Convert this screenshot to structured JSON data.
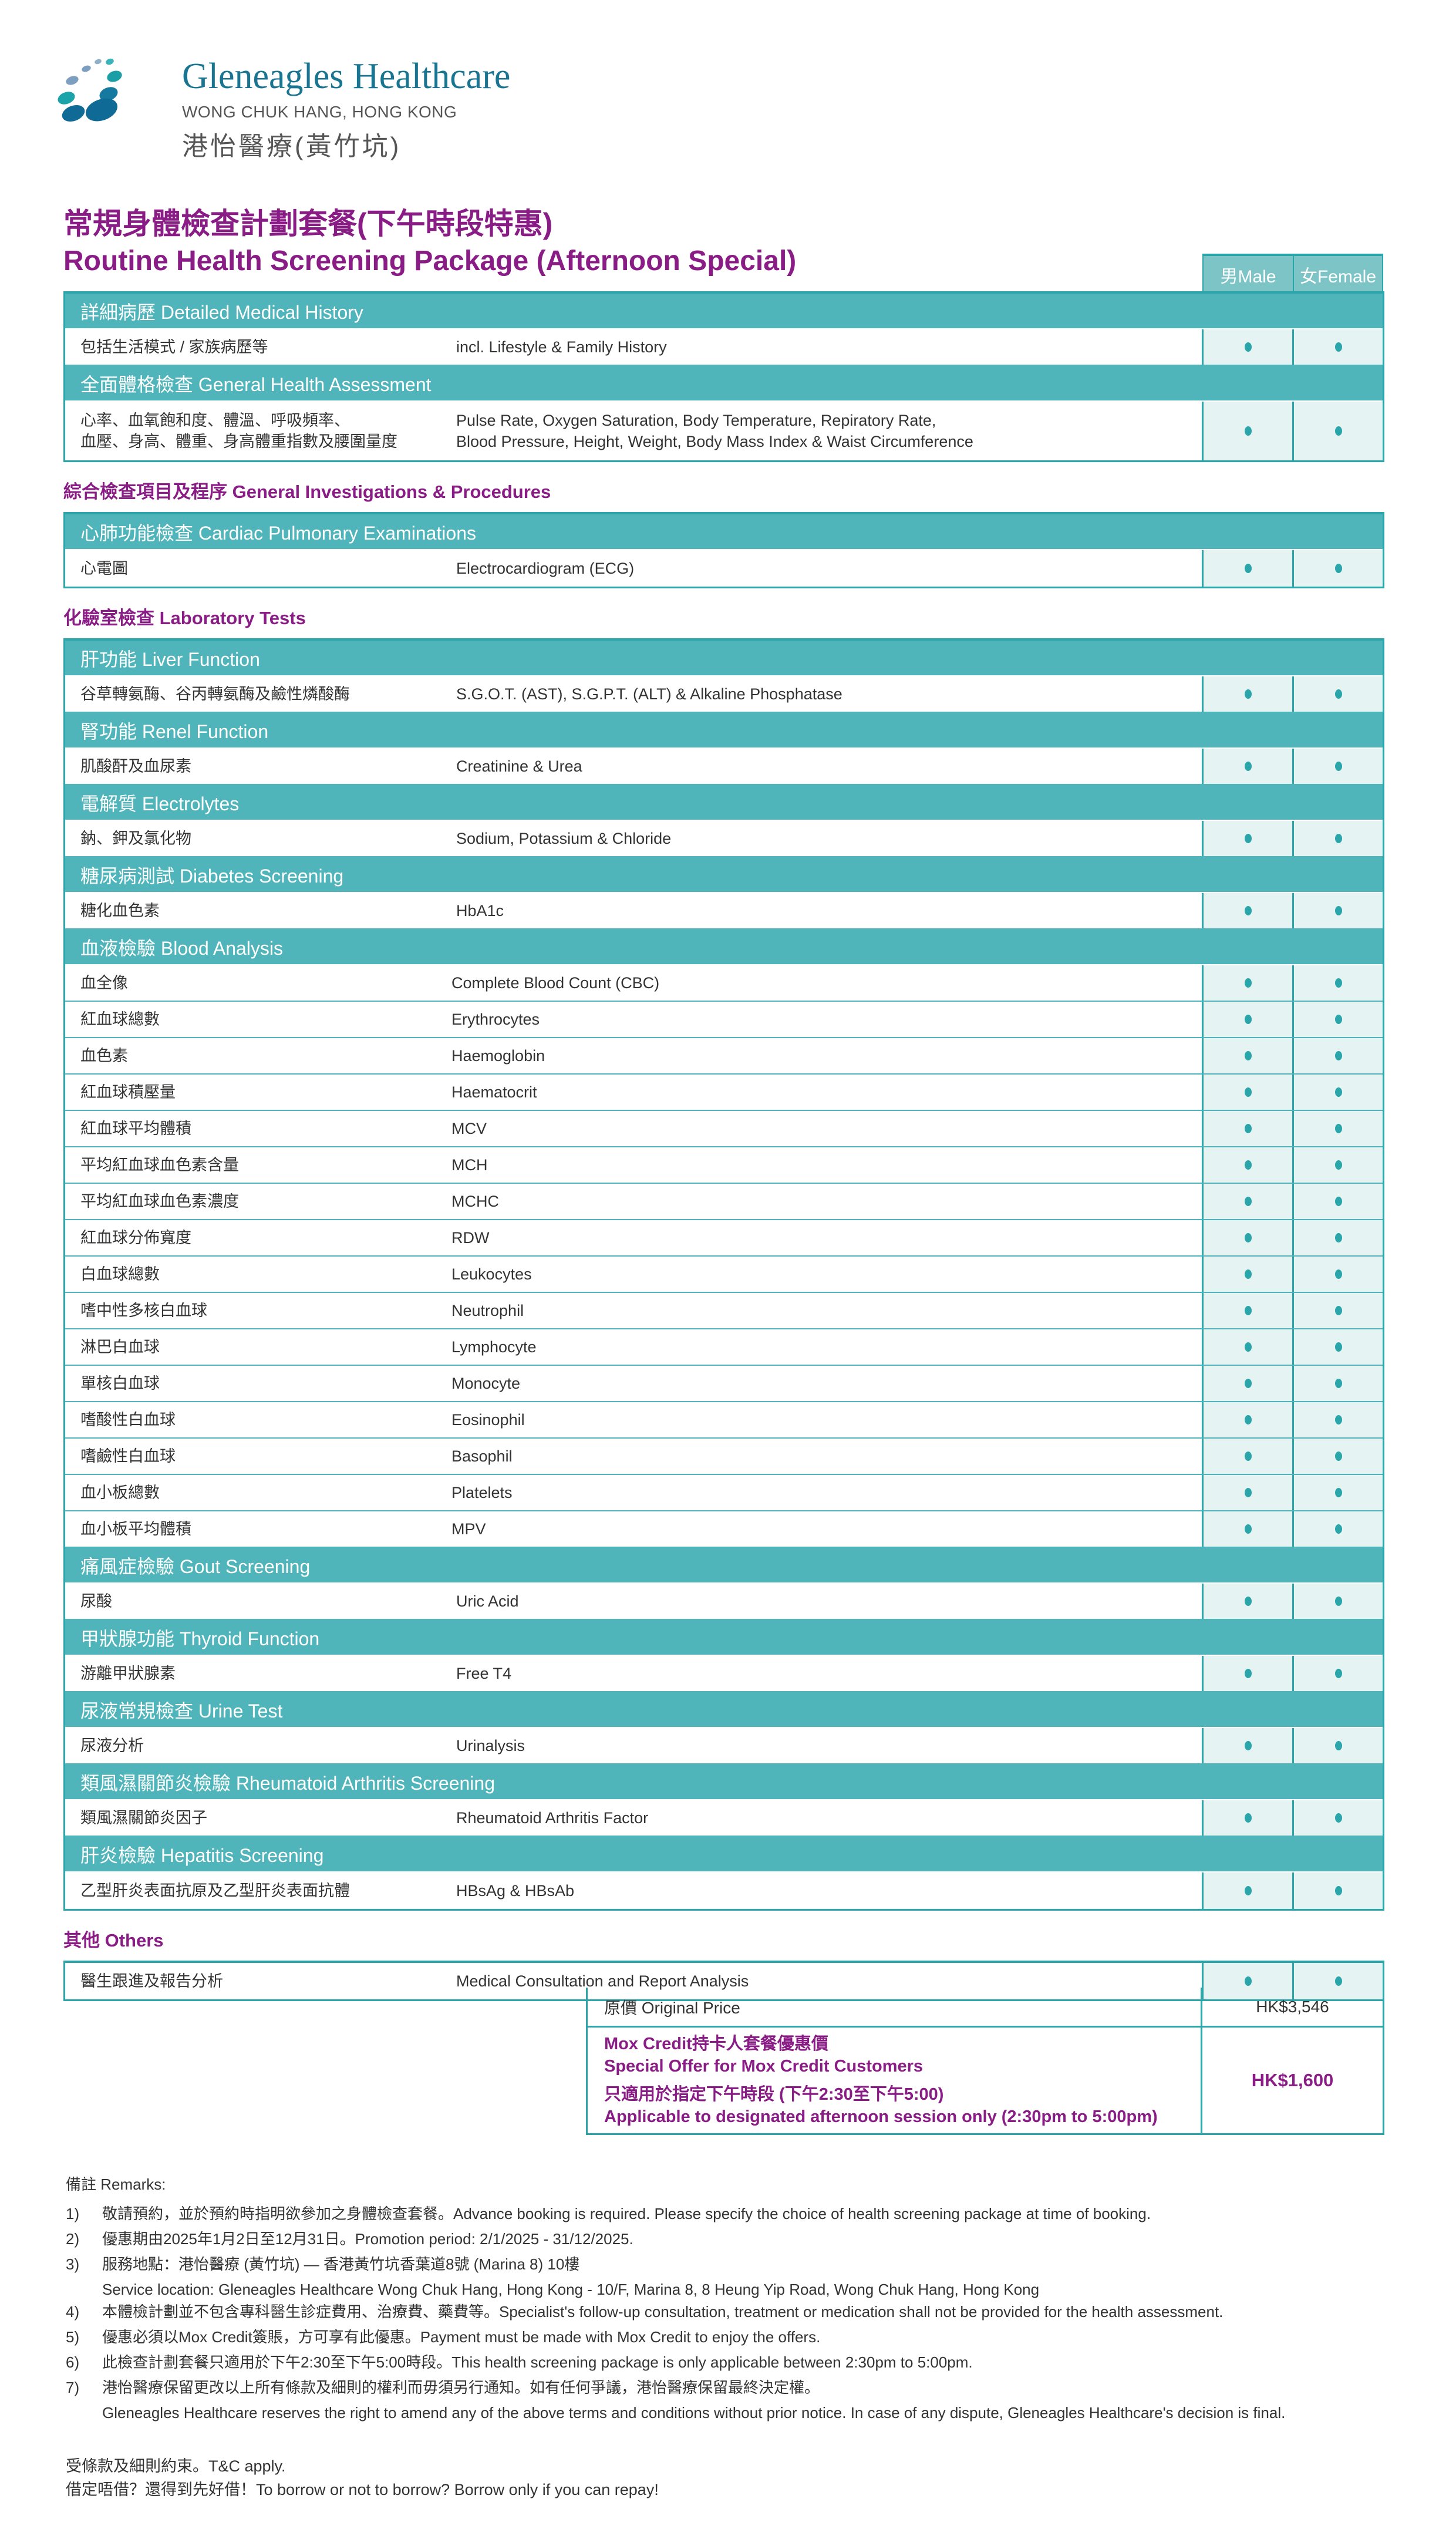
{
  "brand": {
    "name": "Gleneagles Healthcare",
    "location": "WONG CHUK HANG, HONG KONG",
    "name_zh": "港怡醫療(黃竹坑)"
  },
  "title": {
    "zh": "常規身體檢查計劃套餐(下午時段特惠)",
    "en": "Routine Health Screening Package (Afternoon Special)"
  },
  "columns": {
    "male": "男Male",
    "female": "女Female"
  },
  "colors": {
    "teal_header": "#4fb5bb",
    "teal_border": "#2aa5aa",
    "purple": "#8a1c86",
    "cell_bg": "#e6f3f3"
  },
  "blocks": [
    {
      "heading": "",
      "groups": [
        {
          "title": "詳細病歷 Detailed Medical History",
          "items": [
            {
              "zh": "包括生活模式 / 家族病歷等",
              "en": "incl. Lifestyle & Family History",
              "male": true,
              "female": true
            }
          ]
        },
        {
          "title": "全面體格檢查 General Health Assessment",
          "items": [
            {
              "zh": "心率、血氧飽和度、體溫、呼吸頻率、\n血壓、身高、體重、身高體重指數及腰圍量度",
              "en": "Pulse Rate, Oxygen Saturation, Body Temperature, Repiratory Rate,\nBlood Pressure, Height, Weight, Body Mass Index & Waist Circumference",
              "male": true,
              "female": true,
              "tall": true
            }
          ]
        }
      ]
    },
    {
      "heading": "綜合檢查項目及程序 General Investigations & Procedures",
      "groups": [
        {
          "title": "心肺功能檢查 Cardiac Pulmonary Examinations",
          "items": [
            {
              "zh": "心電圖",
              "en": "Electrocardiogram (ECG)",
              "male": true,
              "female": true
            }
          ]
        }
      ]
    },
    {
      "heading": "化驗室檢查 Laboratory Tests",
      "groups": [
        {
          "title": "肝功能 Liver Function",
          "items": [
            {
              "zh": "谷草轉氨酶、谷丙轉氨酶及鹼性燐酸酶",
              "en": "S.G.O.T. (AST), S.G.P.T. (ALT) & Alkaline Phosphatase",
              "male": true,
              "female": true
            }
          ]
        },
        {
          "title": "腎功能 Renel Function",
          "items": [
            {
              "zh": "肌酸酐及血尿素",
              "en": "Creatinine & Urea",
              "male": true,
              "female": true
            }
          ]
        },
        {
          "title": "電解質 Electrolytes",
          "items": [
            {
              "zh": "鈉、鉀及氯化物",
              "en": "Sodium, Potassium & Chloride",
              "male": true,
              "female": true
            }
          ]
        },
        {
          "title": "糖尿病測試 Diabetes Screening",
          "items": [
            {
              "zh": "糖化血色素",
              "en": "HbA1c",
              "male": true,
              "female": true
            }
          ]
        },
        {
          "title": "血液檢驗 Blood Analysis",
          "items": [
            {
              "zh": "血全像",
              "en": "Complete Blood Count (CBC)",
              "male": true,
              "female": true,
              "b": true
            },
            {
              "zh": "紅血球總數",
              "en": "Erythrocytes",
              "male": true,
              "female": true,
              "b": true
            },
            {
              "zh": "血色素",
              "en": "Haemoglobin",
              "male": true,
              "female": true,
              "b": true
            },
            {
              "zh": "紅血球積壓量",
              "en": "Haematocrit",
              "male": true,
              "female": true,
              "b": true
            },
            {
              "zh": "紅血球平均體積",
              "en": "MCV",
              "male": true,
              "female": true,
              "b": true
            },
            {
              "zh": "平均紅血球血色素含量",
              "en": "MCH",
              "male": true,
              "female": true,
              "b": true
            },
            {
              "zh": "平均紅血球血色素濃度",
              "en": "MCHC",
              "male": true,
              "female": true,
              "b": true
            },
            {
              "zh": "紅血球分佈寬度",
              "en": "RDW",
              "male": true,
              "female": true,
              "b": true
            },
            {
              "zh": "白血球總數",
              "en": "Leukocytes",
              "male": true,
              "female": true,
              "b": true
            },
            {
              "zh": "嗜中性多核白血球",
              "en": "Neutrophil",
              "male": true,
              "female": true,
              "b": true
            },
            {
              "zh": "淋巴白血球",
              "en": "Lymphocyte",
              "male": true,
              "female": true,
              "b": true
            },
            {
              "zh": "單核白血球",
              "en": "Monocyte",
              "male": true,
              "female": true,
              "b": true
            },
            {
              "zh": "嗜酸性白血球",
              "en": "Eosinophil",
              "male": true,
              "female": true,
              "b": true
            },
            {
              "zh": "嗜鹼性白血球",
              "en": "Basophil",
              "male": true,
              "female": true,
              "b": true
            },
            {
              "zh": "血小板總數",
              "en": "Platelets",
              "male": true,
              "female": true,
              "b": true
            },
            {
              "zh": "血小板平均體積",
              "en": "MPV",
              "male": true,
              "female": true,
              "b": true
            }
          ]
        },
        {
          "title": "痛風症檢驗 Gout Screening",
          "items": [
            {
              "zh": "尿酸",
              "en": "Uric Acid",
              "male": true,
              "female": true
            }
          ]
        },
        {
          "title": "甲狀腺功能 Thyroid Function",
          "items": [
            {
              "zh": "游離甲狀腺素",
              "en": "Free T4",
              "male": true,
              "female": true
            }
          ]
        },
        {
          "title": "尿液常規檢查 Urine Test",
          "items": [
            {
              "zh": "尿液分析",
              "en": "Urinalysis",
              "male": true,
              "female": true
            }
          ]
        },
        {
          "title": "類風濕關節炎檢驗 Rheumatoid Arthritis Screening",
          "items": [
            {
              "zh": "類風濕關節炎因子",
              "en": "Rheumatoid Arthritis Factor",
              "male": true,
              "female": true
            }
          ]
        },
        {
          "title": "肝炎檢驗 Hepatitis Screening",
          "items": [
            {
              "zh": "乙型肝炎表面抗原及乙型肝炎表面抗體",
              "en": "HBsAg & HBsAb",
              "male": true,
              "female": true
            }
          ]
        }
      ]
    },
    {
      "heading": "其他 Others",
      "groups": [
        {
          "title": "",
          "items": [
            {
              "zh": "醫生跟進及報告分析",
              "en": "Medical Consultation and Report Analysis",
              "male": true,
              "female": true
            }
          ]
        }
      ]
    }
  ],
  "price": {
    "original_label": "原價 Original Price",
    "original_value": "HK$3,546",
    "offer_zh": "Mox Credit持卡人套餐優惠價",
    "offer_en": "Special Offer for Mox Credit Customers",
    "session_zh": "只適用於指定下午時段 (下午2:30至下午5:00)",
    "session_en": "Applicable to designated afternoon session only (2:30pm to 5:00pm)",
    "offer_value": "HK$1,600"
  },
  "remarks": {
    "heading": "備註 Remarks:",
    "items": [
      {
        "n": "1)",
        "text": "敬請預約，並於預約時指明欲參加之身體檢查套餐。Advance booking is required. Please specify the choice of health screening package at time of booking.",
        "sub": ""
      },
      {
        "n": "2)",
        "text": "優惠期由2025年1月2日至12月31日。Promotion period: 2/1/2025 - 31/12/2025.",
        "sub": ""
      },
      {
        "n": "3)",
        "text": "服務地點：港怡醫療 (黃竹坑) — 香港黃竹坑香葉道8號 (Marina 8) 10樓",
        "sub": "Service location: Gleneagles Healthcare Wong Chuk Hang, Hong Kong - 10/F, Marina 8, 8 Heung Yip Road, Wong Chuk Hang, Hong Kong"
      },
      {
        "n": "4)",
        "text": "本體檢計劃並不包含專科醫生診症費用、治療費、藥費等。Specialist's follow-up consultation, treatment or medication shall not be provided for the health assessment.",
        "sub": ""
      },
      {
        "n": "5)",
        "text": "優惠必須以Mox Credit簽賬，方可享有此優惠。Payment must be made with Mox Credit to enjoy the offers.",
        "sub": ""
      },
      {
        "n": "6)",
        "text": "此檢查計劃套餐只適用於下午2:30至下午5:00時段。This health screening package is only applicable between 2:30pm to 5:00pm.",
        "sub": ""
      },
      {
        "n": "7)",
        "text": "港怡醫療保留更改以上所有條款及細則的權利而毋須另行通知。如有任何爭議，港怡醫療保留最終決定權。",
        "sub": "Gleneagles Healthcare reserves the right to amend any of the above terms and conditions without prior notice. In case of any dispute, Gleneagles Healthcare's decision is final."
      }
    ]
  },
  "footer": {
    "tc": "受條款及細則約束。T&C apply.",
    "warning": "借定唔借？還得到先好借！To borrow or not to borrow? Borrow only if you can repay!"
  }
}
